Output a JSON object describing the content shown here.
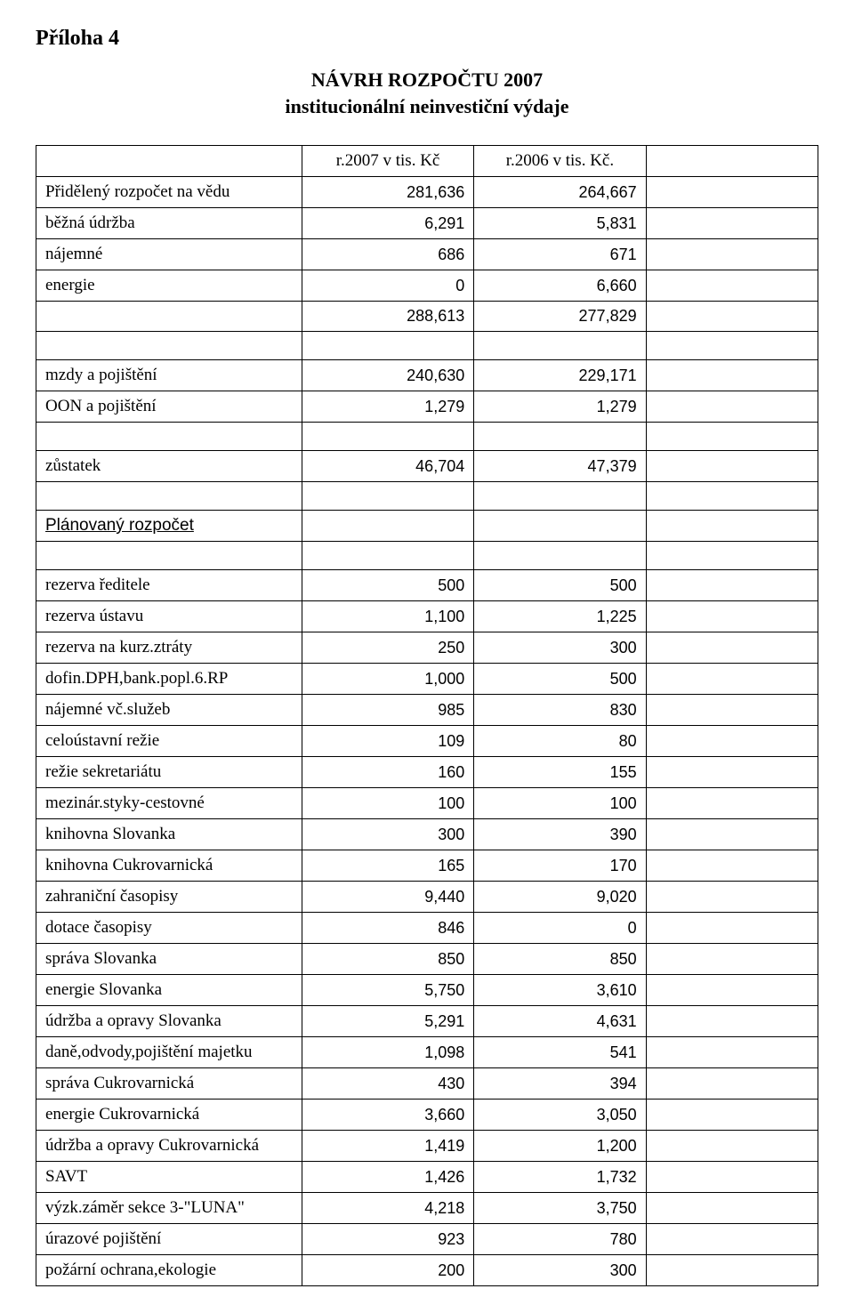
{
  "attachment_label": "Příloha 4",
  "title": "NÁVRH ROZPOČTU 2007",
  "subtitle": "institucionální neinvestiční výdaje",
  "header_col1": "r.2007 v tis. Kč",
  "header_col2": "r.2006 v tis. Kč.",
  "planned_budget_label": "Plánovaný rozpočet",
  "rows": [
    {
      "label": "Přidělený rozpočet na vědu",
      "v1": "281,636",
      "v2": "264,667"
    },
    {
      "label": "běžná údržba",
      "v1": "6,291",
      "v2": "5,831"
    },
    {
      "label": "nájemné",
      "v1": "686",
      "v2": "671"
    },
    {
      "label": "energie",
      "v1": "0",
      "v2": "6,660"
    },
    {
      "label": "",
      "v1": "288,613",
      "v2": "277,829"
    },
    {
      "label": "",
      "v1": "",
      "v2": ""
    },
    {
      "label": "mzdy a pojištění",
      "v1": "240,630",
      "v2": "229,171"
    },
    {
      "label": "OON a pojištění",
      "v1": "1,279",
      "v2": "1,279"
    },
    {
      "label": "",
      "v1": "",
      "v2": ""
    },
    {
      "label": "zůstatek",
      "v1": "46,704",
      "v2": "47,379"
    },
    {
      "label": "",
      "v1": "",
      "v2": ""
    },
    {
      "label": "PLANNED_BUDGET",
      "v1": "",
      "v2": ""
    },
    {
      "label": "",
      "v1": "",
      "v2": ""
    },
    {
      "label": "rezerva ředitele",
      "v1": "500",
      "v2": "500"
    },
    {
      "label": "rezerva ústavu",
      "v1": "1,100",
      "v2": "1,225"
    },
    {
      "label": "rezerva na kurz.ztráty",
      "v1": "250",
      "v2": "300"
    },
    {
      "label": "dofin.DPH,bank.popl.6.RP",
      "v1": "1,000",
      "v2": "500"
    },
    {
      "label": "nájemné vč.služeb",
      "v1": "985",
      "v2": "830"
    },
    {
      "label": "celoústavní režie",
      "v1": "109",
      "v2": "80"
    },
    {
      "label": "režie sekretariátu",
      "v1": "160",
      "v2": "155"
    },
    {
      "label": "mezinár.styky-cestovné",
      "v1": "100",
      "v2": "100"
    },
    {
      "label": "knihovna Slovanka",
      "v1": "300",
      "v2": "390"
    },
    {
      "label": "knihovna Cukrovarnická",
      "v1": "165",
      "v2": "170"
    },
    {
      "label": "zahraniční časopisy",
      "v1": "9,440",
      "v2": "9,020"
    },
    {
      "label": "dotace časopisy",
      "v1": "846",
      "v2": "0"
    },
    {
      "label": "správa Slovanka",
      "v1": "850",
      "v2": "850"
    },
    {
      "label": "energie Slovanka",
      "v1": "5,750",
      "v2": "3,610"
    },
    {
      "label": "údržba a opravy Slovanka",
      "v1": "5,291",
      "v2": "4,631"
    },
    {
      "label": "daně,odvody,pojištění majetku",
      "v1": "1,098",
      "v2": "541"
    },
    {
      "label": "správa Cukrovarnická",
      "v1": "430",
      "v2": "394"
    },
    {
      "label": "energie Cukrovarnická",
      "v1": "3,660",
      "v2": "3,050"
    },
    {
      "label": "údržba a opravy Cukrovarnická",
      "v1": "1,419",
      "v2": "1,200"
    },
    {
      "label": "SAVT",
      "v1": "1,426",
      "v2": "1,732"
    },
    {
      "label": "výzk.záměr sekce 3-\"LUNA\"",
      "v1": "4,218",
      "v2": "3,750"
    },
    {
      "label": "úrazové pojištění",
      "v1": "923",
      "v2": "780"
    },
    {
      "label": "požární ochrana,ekologie",
      "v1": "200",
      "v2": "300"
    }
  ],
  "styling": {
    "background_color": "#ffffff",
    "text_color": "#000000",
    "border_color": "#000000",
    "title_fontsize": 22,
    "cell_fontsize": 19,
    "value_fontsize": 18,
    "font_family_text": "Times New Roman",
    "font_family_values": "Arial",
    "col_widths_pct": [
      34,
      22,
      22,
      22
    ]
  }
}
